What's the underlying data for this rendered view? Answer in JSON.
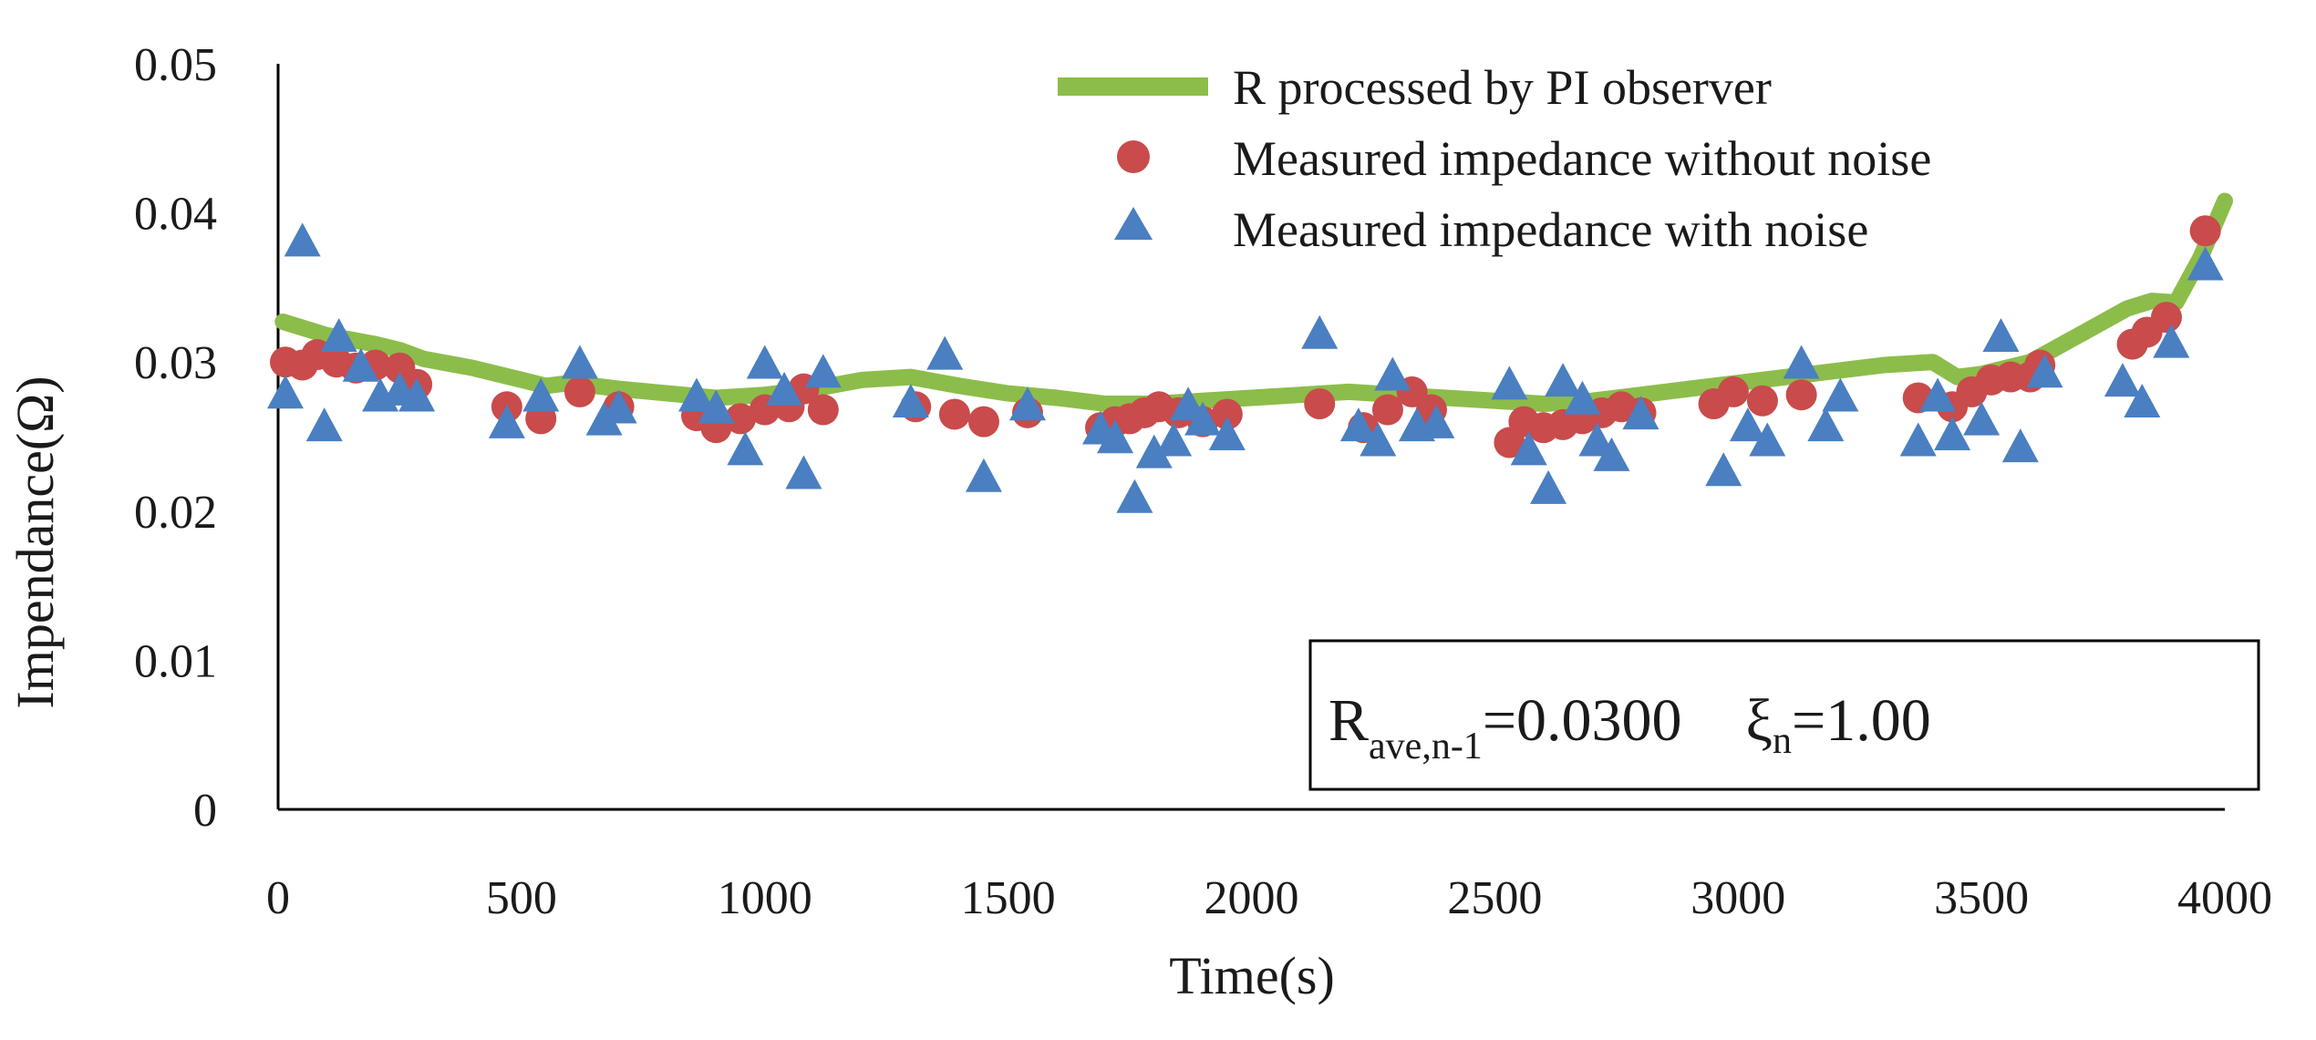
{
  "chart_data": {
    "type": "scatter",
    "title": "",
    "xlabel": "Time(s)",
    "ylabel": "Impendance(Ω)",
    "xlim": [
      0,
      4000
    ],
    "ylim": [
      0,
      0.05
    ],
    "xticks": [
      0,
      500,
      1000,
      1500,
      2000,
      2500,
      3000,
      3500,
      4000
    ],
    "yticks": [
      0,
      0.01,
      0.02,
      0.03,
      0.04,
      0.05
    ],
    "xtick_labels": [
      "0",
      "500",
      "1000",
      "1500",
      "2000",
      "2500",
      "3000",
      "3500",
      "4000"
    ],
    "ytick_labels": [
      "0",
      "0.01",
      "0.02",
      "0.03",
      "0.04",
      "0.05"
    ],
    "grid": false,
    "legend_position": "top-right",
    "colors": {
      "line": "#8cbd4a",
      "circle": "#c94b4b",
      "triangle": "#4a7fc1",
      "axis": "#000000"
    },
    "series": [
      {
        "name": "R processed by PI observer",
        "kind": "line",
        "x": [
          10,
          100,
          200,
          250,
          300,
          400,
          500,
          550,
          600,
          700,
          800,
          900,
          1000,
          1100,
          1200,
          1300,
          1400,
          1500,
          1600,
          1700,
          1800,
          1900,
          2000,
          2100,
          2200,
          2300,
          2400,
          2500,
          2600,
          2700,
          2800,
          2900,
          3000,
          3100,
          3200,
          3300,
          3400,
          3450,
          3500,
          3600,
          3700,
          3800,
          3850,
          3900,
          3950,
          4000
        ],
        "y": [
          0.0327,
          0.0318,
          0.0312,
          0.0308,
          0.0302,
          0.0296,
          0.0288,
          0.0284,
          0.0286,
          0.0282,
          0.0279,
          0.0276,
          0.0278,
          0.0282,
          0.0288,
          0.029,
          0.0284,
          0.0279,
          0.0276,
          0.0272,
          0.0272,
          0.0274,
          0.0276,
          0.0278,
          0.028,
          0.0278,
          0.0276,
          0.0274,
          0.0272,
          0.0274,
          0.0278,
          0.0282,
          0.0286,
          0.029,
          0.0294,
          0.0298,
          0.03,
          0.029,
          0.0292,
          0.03,
          0.0318,
          0.0336,
          0.0341,
          0.034,
          0.037,
          0.0408
        ]
      },
      {
        "name": "Measured impedance without noise",
        "kind": "circle",
        "x": [
          15,
          50,
          80,
          120,
          160,
          200,
          250,
          285,
          470,
          540,
          620,
          700,
          860,
          900,
          950,
          1000,
          1050,
          1080,
          1120,
          1310,
          1390,
          1450,
          1540,
          1690,
          1720,
          1750,
          1780,
          1810,
          1850,
          1900,
          1950,
          2140,
          2230,
          2280,
          2330,
          2370,
          2530,
          2560,
          2600,
          2640,
          2680,
          2720,
          2760,
          2800,
          2950,
          2990,
          3050,
          3130,
          3370,
          3440,
          3480,
          3520,
          3560,
          3600,
          3620,
          3810,
          3840,
          3880,
          3960
        ],
        "y": [
          0.03,
          0.0298,
          0.0305,
          0.03,
          0.0296,
          0.0298,
          0.0296,
          0.0285,
          0.027,
          0.0262,
          0.028,
          0.027,
          0.0264,
          0.0256,
          0.0262,
          0.0268,
          0.027,
          0.0282,
          0.0268,
          0.027,
          0.0265,
          0.026,
          0.0266,
          0.0256,
          0.026,
          0.0262,
          0.0266,
          0.027,
          0.0266,
          0.026,
          0.0265,
          0.0272,
          0.0256,
          0.0268,
          0.028,
          0.0268,
          0.0246,
          0.026,
          0.0256,
          0.0258,
          0.0262,
          0.0266,
          0.027,
          0.0266,
          0.0272,
          0.028,
          0.0274,
          0.0278,
          0.0276,
          0.027,
          0.028,
          0.0288,
          0.029,
          0.029,
          0.0298,
          0.0312,
          0.032,
          0.033,
          0.0388
        ]
      },
      {
        "name": "Measured impedance with noise",
        "kind": "triangle",
        "x": [
          15,
          50,
          95,
          125,
          170,
          210,
          250,
          285,
          470,
          540,
          620,
          670,
          700,
          860,
          900,
          960,
          1000,
          1040,
          1080,
          1120,
          1300,
          1370,
          1450,
          1540,
          1690,
          1720,
          1760,
          1800,
          1840,
          1870,
          1900,
          1950,
          2140,
          2220,
          2260,
          2290,
          2340,
          2380,
          2530,
          2570,
          2610,
          2640,
          2680,
          2710,
          2740,
          2800,
          2970,
          3020,
          3060,
          3130,
          3180,
          3210,
          3370,
          3410,
          3440,
          3500,
          3540,
          3580,
          3630,
          3790,
          3830,
          3890,
          3960
        ],
        "y": [
          0.0278,
          0.038,
          0.0256,
          0.0316,
          0.0296,
          0.0276,
          0.028,
          0.0276,
          0.0258,
          0.0276,
          0.0298,
          0.026,
          0.0268,
          0.0276,
          0.0268,
          0.024,
          0.0298,
          0.028,
          0.0224,
          0.0292,
          0.0272,
          0.0304,
          0.0222,
          0.027,
          0.0254,
          0.0248,
          0.0208,
          0.0238,
          0.0246,
          0.027,
          0.026,
          0.025,
          0.0318,
          0.0256,
          0.0246,
          0.029,
          0.0256,
          0.0258,
          0.0284,
          0.024,
          0.0214,
          0.0286,
          0.0274,
          0.0246,
          0.0236,
          0.0264,
          0.0226,
          0.0256,
          0.0246,
          0.0298,
          0.0256,
          0.0276,
          0.0246,
          0.0276,
          0.025,
          0.026,
          0.0316,
          0.0242,
          0.0292,
          0.0286,
          0.0272,
          0.0312,
          0.0364
        ]
      }
    ],
    "annotation": {
      "r_main": "R",
      "r_sub": "ave,n-1",
      "r_value": "=0.0300",
      "xi_main": "ξ",
      "xi_sub": "n",
      "xi_value": "=1.00"
    }
  }
}
